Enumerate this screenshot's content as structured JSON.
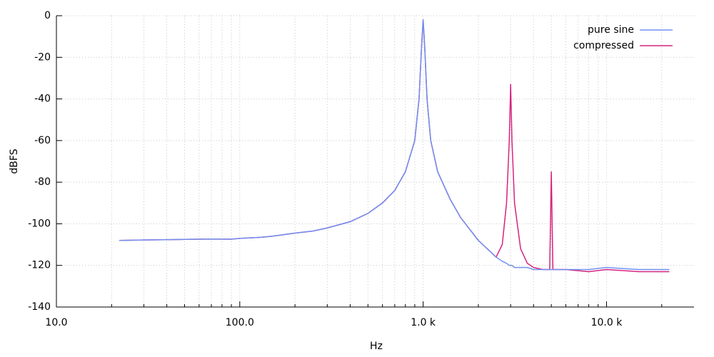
{
  "chart_data": {
    "type": "line",
    "xlabel": "Hz",
    "ylabel": "dBFS",
    "xscale": "log",
    "xlim": [
      10,
      30000
    ],
    "ylim": [
      -140,
      0
    ],
    "xticks": [
      {
        "value": 10,
        "label": "10.0"
      },
      {
        "value": 100,
        "label": "100.0"
      },
      {
        "value": 1000,
        "label": "1.0 k"
      },
      {
        "value": 10000,
        "label": "10.0 k"
      }
    ],
    "xminorticks": [
      20,
      30,
      40,
      50,
      60,
      70,
      80,
      90,
      200,
      300,
      400,
      500,
      600,
      700,
      800,
      900,
      2000,
      3000,
      4000,
      5000,
      6000,
      7000,
      8000,
      9000,
      20000
    ],
    "yticks": [
      -140,
      -120,
      -100,
      -80,
      -60,
      -40,
      -20,
      0
    ],
    "grid": true,
    "legend": "top-right",
    "x": [
      22,
      30,
      50,
      70,
      90,
      100,
      130,
      150,
      200,
      250,
      300,
      400,
      500,
      600,
      700,
      800,
      900,
      950,
      980,
      1000,
      1020,
      1050,
      1100,
      1200,
      1400,
      1600,
      2000,
      2500,
      2700,
      2850,
      2950,
      3000,
      3050,
      3150,
      3400,
      3700,
      4000,
      4500,
      4900,
      5000,
      5100,
      6000,
      8000,
      10000,
      15000,
      22000
    ],
    "series": [
      {
        "name": "pure sine",
        "color": "#7090f0",
        "values": [
          -108,
          -107.8,
          -107.5,
          -107.3,
          -107.4,
          -107,
          -106.5,
          -106,
          -104.5,
          -103.5,
          -102,
          -99,
          -95,
          -90,
          -84,
          -75,
          -60,
          -40,
          -15,
          -2,
          -15,
          -40,
          -60,
          -75,
          -88,
          -97,
          -108,
          -116,
          -118,
          -119,
          -120,
          -120,
          -120,
          -121,
          -121,
          -121,
          -122,
          -122,
          -122,
          -122,
          -122,
          -122,
          -122,
          -121,
          -122,
          -122
        ]
      },
      {
        "name": "compressed",
        "color": "#d6247e",
        "values": [
          -108,
          -107.8,
          -107.5,
          -107.3,
          -107.4,
          -107,
          -106.5,
          -106,
          -104.5,
          -103.5,
          -102,
          -99,
          -95,
          -90,
          -84,
          -75,
          -60,
          -40,
          -15,
          -2,
          -15,
          -40,
          -60,
          -75,
          -88,
          -97,
          -108,
          -116,
          -110,
          -90,
          -60,
          -33,
          -60,
          -90,
          -112,
          -119,
          -121,
          -122,
          -122,
          -75,
          -122,
          -122,
          -123,
          -122,
          -123,
          -123
        ]
      }
    ]
  }
}
